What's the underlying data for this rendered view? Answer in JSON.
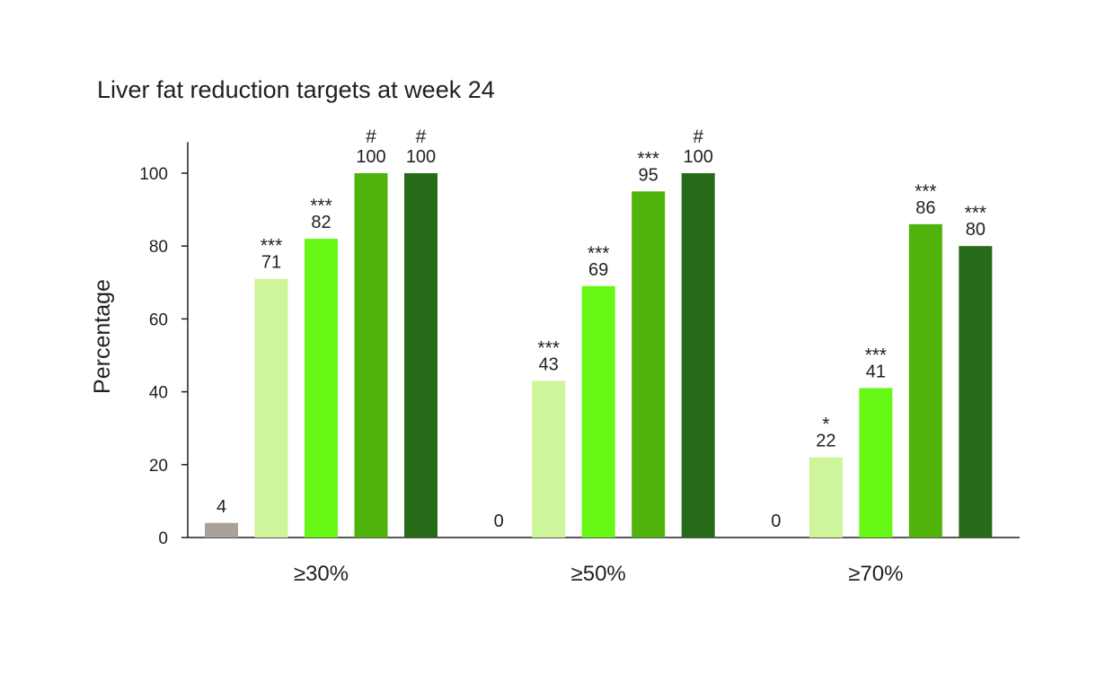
{
  "chart_data": {
    "type": "bar",
    "title": "Liver fat reduction targets at week 24",
    "xlabel": "",
    "ylabel": "Percentage",
    "ylim": [
      0,
      110
    ],
    "yticks": [
      0,
      20,
      40,
      60,
      80,
      100
    ],
    "grid": false,
    "categories": [
      "≥30%",
      "≥50%",
      "≥70%"
    ],
    "colors": [
      "#a8a29b",
      "#cdf59a",
      "#66f814",
      "#4fb30c",
      "#276b18"
    ],
    "series": [
      {
        "values": [
          4,
          0,
          0
        ],
        "labels": [
          "4",
          "0",
          "0"
        ],
        "significance": [
          "",
          "",
          ""
        ]
      },
      {
        "values": [
          71,
          43,
          22
        ],
        "labels": [
          "71",
          "43",
          "22"
        ],
        "significance": [
          "***",
          "***",
          "*"
        ]
      },
      {
        "values": [
          82,
          69,
          41
        ],
        "labels": [
          "82",
          "69",
          "41"
        ],
        "significance": [
          "***",
          "***",
          "***"
        ]
      },
      {
        "values": [
          100,
          95,
          86
        ],
        "labels": [
          "100",
          "95",
          "86"
        ],
        "significance": [
          "#",
          "***",
          "***"
        ]
      },
      {
        "values": [
          100,
          100,
          80
        ],
        "labels": [
          "100",
          "100",
          "80"
        ],
        "significance": [
          "#",
          "#",
          "***"
        ]
      }
    ]
  }
}
